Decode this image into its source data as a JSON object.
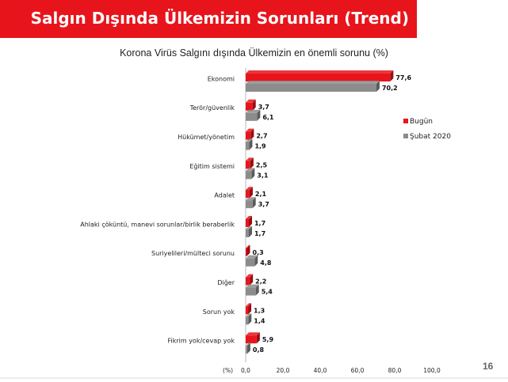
{
  "header": {
    "title": "Salgın Dışında Ülkemizin Sorunları (Trend)",
    "page_number": "16"
  },
  "chart_data": {
    "type": "bar",
    "orientation": "horizontal",
    "title": "Korona Virüs Salgını dışında Ülkemizin en önemli sorunu (%)",
    "axis_unit_label": "(%)",
    "categories": [
      "Ekonomi",
      "Terör/güvenlik",
      "Hükümet/yönetim",
      "Eğitim sistemi",
      "Adalet",
      "Ahlaki çöküntü, manevi sorunlar/birlik beraberlik",
      "Suriyelileri/mülteci sorunu",
      "Diğer",
      "Sorun yok",
      "Fikrim yok/cevap yok"
    ],
    "series": [
      {
        "name": "Bugün",
        "color": "#e8141c",
        "values": [
          77.6,
          3.7,
          2.7,
          2.5,
          2.1,
          1.7,
          0.3,
          2.2,
          1.3,
          5.9
        ]
      },
      {
        "name": "Şubat 2020",
        "color": "#8c8c8c",
        "values": [
          70.2,
          6.1,
          1.9,
          3.1,
          3.7,
          1.7,
          4.8,
          5.4,
          1.4,
          0.8
        ]
      }
    ],
    "xlim": [
      0,
      100
    ],
    "x_ticks": [
      "0,0",
      "20,0",
      "40,0",
      "60,0",
      "80,0",
      "100,0"
    ],
    "legend_position": "right",
    "grid": false
  }
}
